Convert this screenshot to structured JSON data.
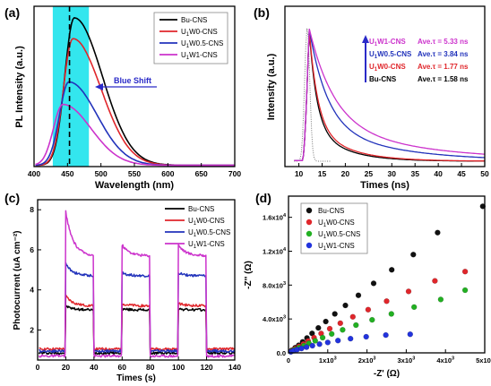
{
  "chart_data": [
    {
      "panel": "(a)",
      "type": "line",
      "xlabel": "Wavelength (nm)",
      "ylabel": "PL Intensity (a.u.)",
      "xlim": [
        400,
        700
      ],
      "xticks": [
        400,
        450,
        500,
        550,
        600,
        650,
        700
      ],
      "ylim": [
        0,
        1
      ],
      "show_y_ticklabels": false,
      "highlight_band": [
        428,
        482
      ],
      "dashed_line_x": 453,
      "annotation": "Blue Shift",
      "legend_position": "top-right",
      "series": [
        {
          "name": "Bu-CNS",
          "name_base": "Bu-CNS",
          "name_sub": "",
          "name_tail": "",
          "color": "#000000",
          "peak": 460,
          "height": 0.92
        },
        {
          "name": "U1W0-CNS",
          "name_base": "U",
          "name_sub": "1",
          "name_tail": "W0-CNS",
          "color": "#e0262b",
          "peak": 458,
          "height": 0.79
        },
        {
          "name": "U1W0.5-CNS",
          "name_base": "U",
          "name_sub": "1",
          "name_tail": "W0.5-CNS",
          "color": "#2233bb",
          "peak": 452,
          "height": 0.52
        },
        {
          "name": "U1W1-CNS",
          "name_base": "U",
          "name_sub": "1",
          "name_tail": "W1-CNS",
          "color": "#cc33cc",
          "peak": 443,
          "height": 0.38
        }
      ]
    },
    {
      "panel": "(b)",
      "type": "line",
      "xlabel": "Times (ns)",
      "ylabel": "Intensity (a.u.)",
      "xlim": [
        7,
        50
      ],
      "xticks": [
        10,
        15,
        20,
        25,
        30,
        35,
        40,
        45,
        50
      ],
      "show_y_ticklabels": false,
      "legend_position": "top-right",
      "series": [
        {
          "name": "U1W1-CNS",
          "name_base": "U",
          "name_sub": "1",
          "name_tail": "W1-CNS",
          "color": "#cc33cc",
          "tau_label": "Ave.τ = 5.33 ns",
          "tau": 5.33
        },
        {
          "name": "U1W0.5-CNS",
          "name_base": "U",
          "name_sub": "1",
          "name_tail": "W0.5-CNS",
          "color": "#2233bb",
          "tau_label": "Ave.τ = 3.84 ns",
          "tau": 3.84
        },
        {
          "name": "U1W0-CNS",
          "name_base": "U",
          "name_sub": "1",
          "name_tail": "W0-CNS",
          "color": "#e0262b",
          "tau_label": "Ave.τ = 1.77 ns",
          "tau": 1.77
        },
        {
          "name": "Bu-CNS",
          "name_base": "Bu-CNS",
          "name_sub": "",
          "name_tail": "",
          "color": "#000000",
          "tau_label": "Ave.τ = 1.58 ns",
          "tau": 1.58
        }
      ]
    },
    {
      "panel": "(c)",
      "type": "line",
      "xlabel": "Times (s)",
      "ylabel": "Photocurrent (uA cm⁻²)",
      "xlim": [
        0,
        140
      ],
      "xticks": [
        0,
        20,
        40,
        60,
        80,
        100,
        120,
        140
      ],
      "ylim": [
        0.5,
        8.5
      ],
      "yticks": [
        2,
        4,
        6,
        8
      ],
      "on_intervals": [
        [
          20,
          40
        ],
        [
          60,
          80
        ],
        [
          100,
          120
        ]
      ],
      "legend_position": "top-right",
      "series": [
        {
          "name": "Bu-CNS",
          "name_base": "Bu-CNS",
          "name_sub": "",
          "name_tail": "",
          "color": "#000000",
          "off": 0.85,
          "on": 3.0,
          "spike": 3.2
        },
        {
          "name": "U1W0-CNS",
          "name_base": "U",
          "name_sub": "1",
          "name_tail": "W0-CNS",
          "color": "#e0262b",
          "off": 1.05,
          "on": 3.2,
          "spike": 3.7
        },
        {
          "name": "U1W0.5-CNS",
          "name_base": "U",
          "name_sub": "1",
          "name_tail": "W0.5-CNS",
          "color": "#2233bb",
          "off": 0.95,
          "on": 4.7,
          "spike": 5.3
        },
        {
          "name": "U1W1-CNS",
          "name_base": "U",
          "name_sub": "1",
          "name_tail": "W1-CNS",
          "color": "#cc33cc",
          "off": 0.7,
          "on": 5.7,
          "spike": 7.9
        }
      ]
    },
    {
      "panel": "(d)",
      "type": "scatter",
      "xlabel": "-Z' (Ω)",
      "ylabel": "-Z'' (Ω)",
      "xlim": [
        0,
        5000
      ],
      "xticks": [
        0,
        1000,
        2000,
        3000,
        4000,
        5000
      ],
      "xtick_labels": [
        {
          "m": "0",
          "e": ""
        },
        {
          "m": "1x10",
          "e": "3"
        },
        {
          "m": "2x10",
          "e": "3"
        },
        {
          "m": "3x10",
          "e": "3"
        },
        {
          "m": "4x10",
          "e": "3"
        },
        {
          "m": "5x10",
          "e": "3"
        }
      ],
      "ylim": [
        0,
        18500
      ],
      "yticks": [
        0,
        4000,
        8000,
        12000,
        16000
      ],
      "ytick_labels": [
        {
          "m": "0.0",
          "e": ""
        },
        {
          "m": "4.0x10",
          "e": "3"
        },
        {
          "m": "8.0x10",
          "e": "3"
        },
        {
          "m": "1.2x10",
          "e": "4"
        },
        {
          "m": "1.6x10",
          "e": "4"
        }
      ],
      "legend_position": "top-left",
      "series": [
        {
          "name": "Bu-CNS",
          "name_base": "Bu-CNS",
          "name_sub": "",
          "name_tail": "",
          "color": "#111111",
          "x": [
            80,
            170,
            260,
            360,
            470,
            600,
            760,
            950,
            1180,
            1450,
            1780,
            2170,
            2630,
            3180,
            3800,
            4950
          ],
          "y": [
            300,
            600,
            900,
            1300,
            1750,
            2300,
            2950,
            3700,
            4600,
            5600,
            6800,
            8200,
            9800,
            11600,
            14200,
            17300
          ]
        },
        {
          "name": "U1W0-CNS",
          "name_base": "U",
          "name_sub": "1",
          "name_tail": "W0-CNS",
          "color": "#e0262b",
          "x": [
            80,
            170,
            270,
            380,
            500,
            650,
            830,
            1050,
            1320,
            1640,
            2030,
            2500,
            3060,
            3730,
            4500
          ],
          "y": [
            250,
            500,
            760,
            1050,
            1400,
            1800,
            2280,
            2850,
            3500,
            4250,
            5100,
            6100,
            7250,
            8500,
            9600
          ]
        },
        {
          "name": "U1W0.5-CNS",
          "name_base": "U",
          "name_sub": "1",
          "name_tail": "W0.5-CNS",
          "color": "#22b022",
          "x": [
            80,
            170,
            270,
            390,
            520,
            680,
            870,
            1100,
            1380,
            1720,
            2130,
            2620,
            3200,
            3880,
            4500
          ],
          "y": [
            200,
            400,
            600,
            850,
            1120,
            1430,
            1800,
            2230,
            2720,
            3280,
            3900,
            4600,
            5400,
            6300,
            7400
          ]
        },
        {
          "name": "U1W1-CNS",
          "name_base": "U",
          "name_sub": "1",
          "name_tail": "W1-CNS",
          "color": "#2233dd",
          "x": [
            60,
            130,
            220,
            330,
            460,
            610,
            790,
            1000,
            1260,
            1580,
            1980,
            2480,
            3100
          ],
          "y": [
            120,
            250,
            380,
            520,
            680,
            850,
            1030,
            1230,
            1450,
            1680,
            1900,
            2100,
            2200
          ]
        }
      ]
    }
  ]
}
